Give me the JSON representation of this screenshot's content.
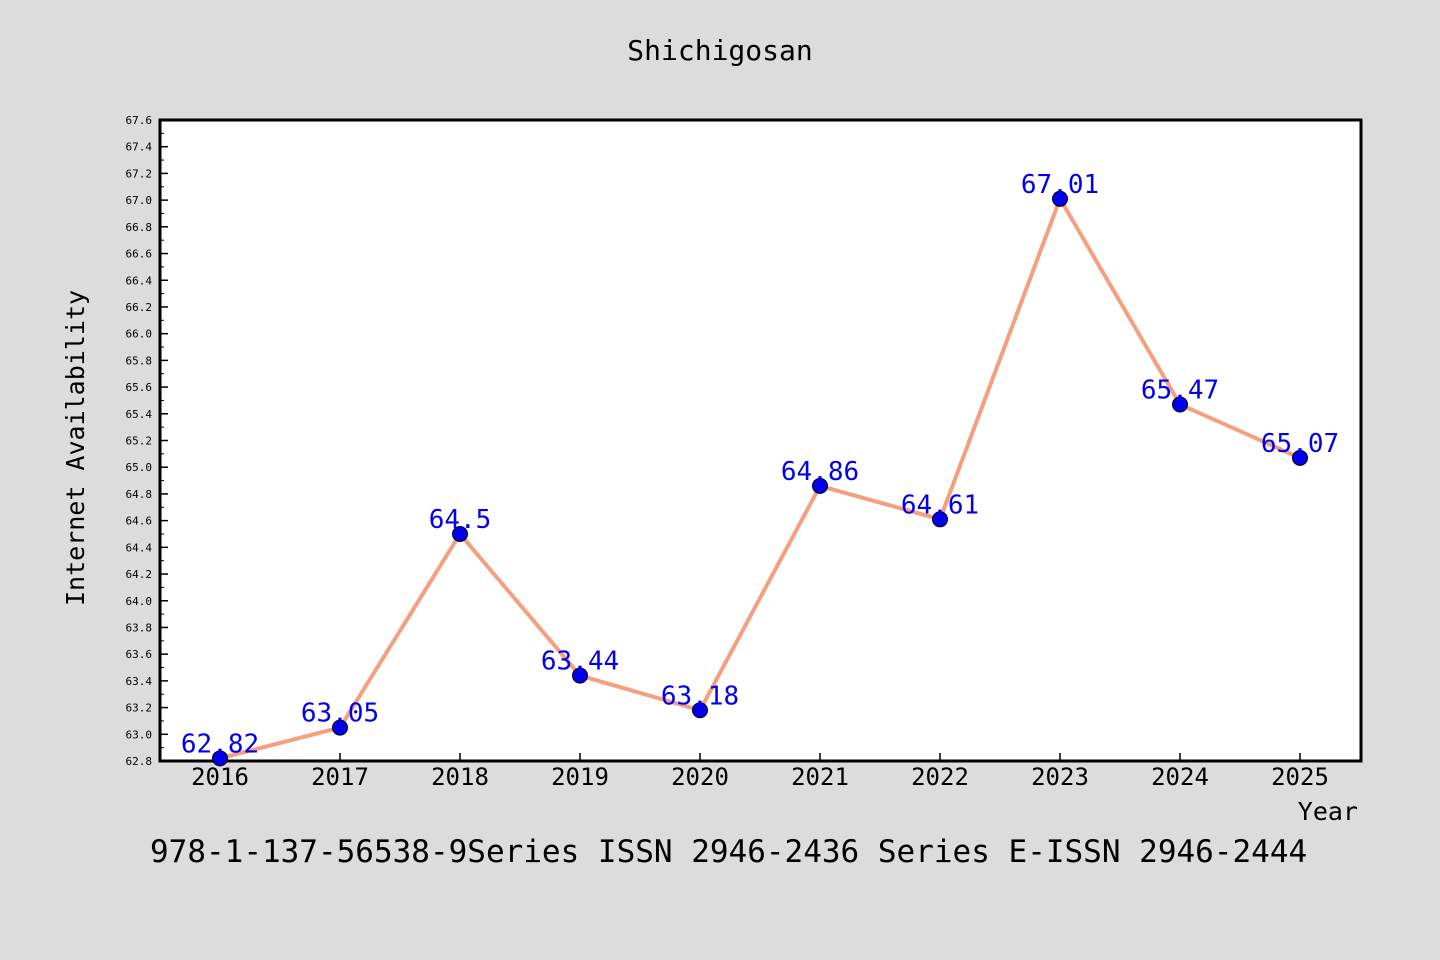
{
  "title": "Shichigosan",
  "footer": "978-1-137-56538-9Series ISSN 2946-2436 Series E-ISSN 2946-2444",
  "chart_data": {
    "type": "line",
    "title": "Shichigosan",
    "xlabel": "Year",
    "ylabel": "Internet Availability",
    "categories": [
      "2016",
      "2017",
      "2018",
      "2019",
      "2020",
      "2021",
      "2022",
      "2023",
      "2024",
      "2025"
    ],
    "series": [
      {
        "values": [
          62.82,
          63.05,
          64.5,
          63.44,
          63.18,
          64.86,
          64.61,
          67.01,
          65.47,
          65.07
        ],
        "data_labels": [
          "62.82",
          "63.05",
          "64.5",
          "63.44",
          "63.18",
          "64.86",
          "64.61",
          "67.01",
          "65.47",
          "65.07"
        ],
        "line_color": "#f4a07e",
        "marker_color": "#0000ee"
      }
    ],
    "yticks": [
      "62.8",
      "63.0",
      "63.2",
      "63.4",
      "63.6",
      "63.8",
      "64.0",
      "64.2",
      "64.4",
      "64.6",
      "64.8",
      "65.0",
      "65.2",
      "65.4",
      "65.6",
      "65.8",
      "66.0",
      "66.2",
      "66.4",
      "66.6",
      "66.8",
      "67.0",
      "67.2",
      "67.4",
      "67.6"
    ],
    "ylim": [
      62.8,
      67.6
    ],
    "grid": false,
    "label_color": "#0000ee"
  }
}
